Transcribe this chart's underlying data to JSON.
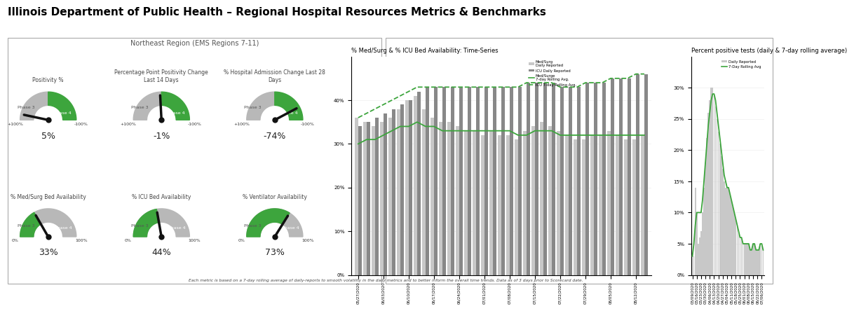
{
  "title": "Illinois Department of Public Health – Regional Hospital Resources Metrics & Benchmarks",
  "region_title": "Northeast Region (EMS Regions 7-11)",
  "gauges_top": [
    {
      "label": "Positivity %",
      "value_text": "5%",
      "needle_deg": 168
    },
    {
      "label": "Percentage Point Positivity Change\nLast 14 Days",
      "value_text": "-1%",
      "needle_deg": 93
    },
    {
      "label": "% Hospital Admission Change Last 28\nDays",
      "value_text": "-74%",
      "needle_deg": 28
    }
  ],
  "gauges_bottom": [
    {
      "label": "% Med/Surg Bed Availability",
      "value_text": "33%",
      "needle_deg": 120
    },
    {
      "label": "% ICU Bed Availability",
      "value_text": "44%",
      "needle_deg": 100
    },
    {
      "label": "% Ventilator Availability",
      "value_text": "73%",
      "needle_deg": 58
    }
  ],
  "phase3_color": "#b8b8b8",
  "phase4_color": "#3da53d",
  "needle_color": "#111111",
  "chart_title_left": "% Med/Surg & % ICU Bed Availability: Time-Series",
  "chart_title_right": "Percent positive tests (daily & 7-day rolling average)",
  "footnote": "Each metric is based on a 7-day rolling average of daily-reports to smooth volatility in the daily metrics and to better inform the overall time trends. Data as of 3 days prior to Scorecard date.",
  "medsurg_color": "#c8c8c8",
  "icu_color": "#888888",
  "line_green": "#3da53d",
  "bg_color": "#ffffff"
}
